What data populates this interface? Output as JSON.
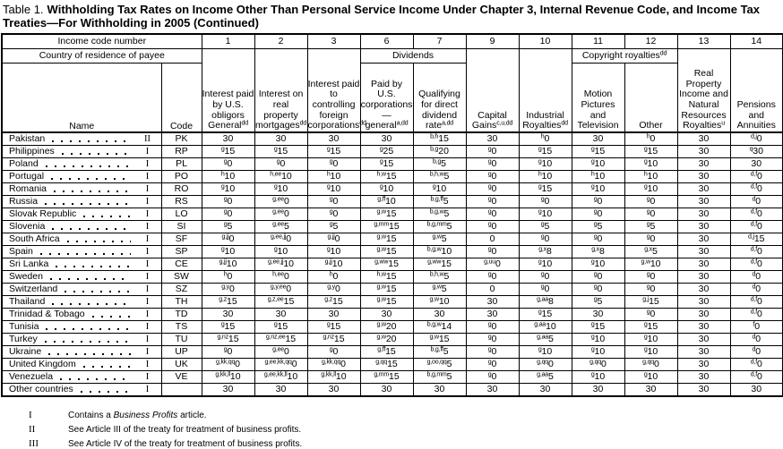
{
  "title": {
    "prefix": "Table 1.",
    "bold_text": "Withholding Tax Rates on Income Other Than Personal Service Income Under Chapter 3, Internal Revenue Code, and Income Tax Treaties—For Withholding in 2005 (Continued)"
  },
  "table": {
    "income_code_label": "Income code number",
    "country_label": "Country of residence of payee",
    "name_label": "Name",
    "code_label": "Code",
    "income_codes": [
      "1",
      "2",
      "3",
      "6",
      "7",
      "9",
      "10",
      "11",
      "12",
      "13",
      "14"
    ],
    "dividends_label": "Dividends",
    "copyright_label": "Copyright royalties^dd",
    "col_headers": [
      "Interest paid by U.S. obligors General^dd",
      "Interest on real property mortgages^dd",
      "Interest paid to controlling foreign corporations^dd",
      "Paid by U.S. corporations—general^a,dd",
      "Qualifying for direct dividend rate^a,dd",
      "Capital Gains^c,u,dd",
      "Industrial Royalties^dd",
      "Motion Pictures and Television",
      "Other",
      "Real Property Income and Natural Resources Royalties^u",
      "Pensions and Annuities"
    ],
    "groups": [
      {
        "rows": [
          {
            "name": "Pakistan",
            "treaty": "II",
            "code": "PK",
            "values": [
              "30",
              "30",
              "30",
              "30",
              "b,h^15",
              "30",
              "h^0",
              "30",
              "h^0",
              "30",
              "d,j^0"
            ]
          },
          {
            "name": "Philippines",
            "treaty": "I",
            "code": "RP",
            "values": [
              "g^15",
              "g^15",
              "g^15",
              "g^25",
              "b,g^20",
              "g^0",
              "g^15",
              "g^15",
              "g^15",
              "30",
              "q^30"
            ]
          },
          {
            "name": "Poland",
            "treaty": "I",
            "code": "PL",
            "values": [
              "g^0",
              "g^0",
              "g^0",
              "g^15",
              "b,g^5",
              "g^0",
              "g^10",
              "g^10",
              "g^10",
              "30",
              "30"
            ]
          },
          {
            "name": "Portugal",
            "treaty": "I",
            "code": "PO",
            "values": [
              "h^10",
              "h,ee^10",
              "h^10",
              "h,w^15",
              "b,h,w^5",
              "g^0",
              "h^10",
              "h^10",
              "h^10",
              "30",
              "d,f^0"
            ]
          },
          {
            "name": "Romania",
            "treaty": "I",
            "code": "RO",
            "values": [
              "g^10",
              "g^10",
              "g^10",
              "g^10",
              "g^10",
              "g^0",
              "g^15",
              "g^10",
              "g^10",
              "30",
              "d,f^0"
            ]
          }
        ]
      },
      {
        "rows": [
          {
            "name": "Russia",
            "treaty": "I",
            "code": "RS",
            "values": [
              "g^0",
              "g,ee^0",
              "g^0",
              "g,ff^10",
              "b,g,ff^5",
              "g^0",
              "g^0",
              "g^0",
              "g^0",
              "30",
              "d^0"
            ]
          },
          {
            "name": "Slovak Republic",
            "treaty": "I",
            "code": "LO",
            "values": [
              "g^0",
              "g,ee^0",
              "g^0",
              "g,w^15",
              "b,g,w^5",
              "g^0",
              "g^10",
              "g^0",
              "g^0",
              "30",
              "d,f^0"
            ]
          },
          {
            "name": "Slovenia",
            "treaty": "I",
            "code": "SI",
            "values": [
              "g^5",
              "g,ee^5",
              "g^5",
              "g,mm^15",
              "b,g,mm^5",
              "g^0",
              "g^5",
              "g^5",
              "g^5",
              "30",
              "d,f^0"
            ]
          },
          {
            "name": "South Africa",
            "treaty": "I",
            "code": "SF",
            "values": [
              "g,jj^0",
              "g,ee,jj^0",
              "g,jj^0",
              "g,w^15",
              "g,w^5",
              "0",
              "g^0",
              "g^0",
              "g^0",
              "30",
              "d,j^15"
            ]
          },
          {
            "name": "Spain",
            "treaty": "I",
            "code": "SP",
            "values": [
              "g^10",
              "g^10",
              "g^10",
              "g,w^15",
              "b,g,w^10",
              "g^0",
              "g,x^8",
              "g,x^8",
              "g,x^5",
              "30",
              "d,f^0"
            ]
          },
          {
            "name": "Sri Lanka",
            "treaty": "I",
            "code": "CE",
            "values": [
              "g,jj^10",
              "g,ee,jj^10",
              "g,jj^10",
              "g,ww^15",
              "g,ww^15",
              "g,uu^0",
              "g^10",
              "g^10",
              "g,w^10",
              "30",
              "d,f^0"
            ]
          },
          {
            "name": "Sweden",
            "treaty": "I",
            "code": "SW",
            "values": [
              "h^0",
              "h,ee^0",
              "h^0",
              "h,w^15",
              "b,h,w^5",
              "g^0",
              "g^0",
              "g^0",
              "g^0",
              "30",
              "d^0"
            ]
          }
        ]
      },
      {
        "rows": [
          {
            "name": "Switzerland",
            "treaty": "I",
            "code": "SZ",
            "values": [
              "g,y^0",
              "g,y,ee^0",
              "g,y^0",
              "g,w^15",
              "g,w^5",
              "0",
              "g^0",
              "g^0",
              "g^0",
              "30",
              "d^0"
            ]
          },
          {
            "name": "Thailand",
            "treaty": "I",
            "code": "TH",
            "values": [
              "g,z^15",
              "g,z,ee^15",
              "g,z^15",
              "g,w^15",
              "g,w^10",
              "30",
              "g,aa^8",
              "g^5",
              "g,j^15",
              "30",
              "d,f^0"
            ]
          },
          {
            "name": "Trinidad & Tobago",
            "treaty": "I",
            "code": "TD",
            "values": [
              "30",
              "30",
              "30",
              "30",
              "30",
              "30",
              "g^15",
              "30",
              "g^0",
              "30",
              "d,f^0"
            ]
          },
          {
            "name": "Tunisia",
            "treaty": "I",
            "code": "TS",
            "values": [
              "g^15",
              "g^15",
              "g^15",
              "g,w^20",
              "b,g,w^14",
              "g^0",
              "g,aa^10",
              "g^15",
              "g^15",
              "30",
              "f^0"
            ]
          },
          {
            "name": "Turkey",
            "treaty": "I",
            "code": "TU",
            "values": [
              "g,nz^15",
              "g,nz,ee^15",
              "g,nz^15",
              "g,w^20",
              "g,w^15",
              "g^0",
              "g,aa^5",
              "g^10",
              "g^10",
              "30",
              "d^0"
            ]
          }
        ]
      },
      {
        "rows": [
          {
            "name": "Ukraine",
            "treaty": "I",
            "code": "UP",
            "values": [
              "g^0",
              "g,ee^0",
              "g^0",
              "g,ff^15",
              "b,g,ff^5",
              "g^0",
              "g^10",
              "g^10",
              "g^10",
              "30",
              "d^0"
            ]
          },
          {
            "name": "United Kingdom",
            "treaty": "I",
            "code": "UK",
            "values": [
              "g,kk,qq^0",
              "g,ee,kk,qq^0",
              "g,kk,qq^0",
              "g,qq^15",
              "g,oo,qq^5",
              "g^0",
              "g,qq^0",
              "g,qq^0",
              "g,qq^0",
              "30",
              "d,f^0"
            ]
          },
          {
            "name": "Venezuela",
            "treaty": "I",
            "code": "VE",
            "values": [
              "g,kk,ll^10",
              "g,ee,kk,ll^10",
              "g,kk,ll^10",
              "g,mm^15",
              "b,g,mm^5",
              "g^0",
              "g,aa^5",
              "g^10",
              "g^10",
              "30",
              "d,f^0"
            ]
          },
          {
            "name": "Other countries",
            "treaty": "I",
            "code": "",
            "values": [
              "30",
              "30",
              "30",
              "30",
              "30",
              "30",
              "30",
              "30",
              "30",
              "30",
              "30"
            ]
          }
        ]
      }
    ]
  },
  "footnotes": [
    {
      "marker": "I",
      "pre": "Contains a ",
      "italic": "Business Profits",
      "post": " article."
    },
    {
      "marker": "II",
      "text": "See Article III of the treaty for treatment of business profits."
    },
    {
      "marker": "III",
      "text": "See Article IV of the treaty for treatment of business profits."
    }
  ]
}
